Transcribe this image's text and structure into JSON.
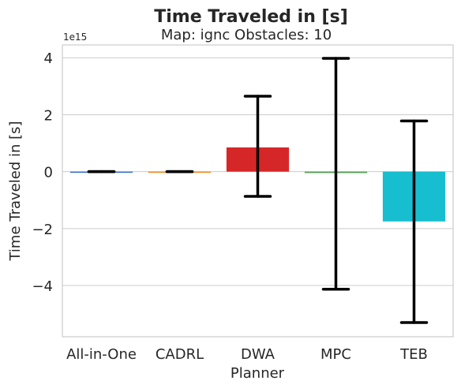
{
  "chart_data": {
    "type": "bar",
    "title": "Time Traveled in [s]",
    "subtitle": "Map: ignc Obstacles: 10",
    "xlabel": "Planner",
    "ylabel": "Time Traveled in [s]",
    "y_offset_label": "1e15",
    "y_scale": 1000000000000000.0,
    "ylim": [
      -5.8,
      4.45
    ],
    "yticks": [
      -4,
      -2,
      0,
      2,
      4
    ],
    "ytick_labels": [
      "−4",
      "−2",
      "0",
      "2",
      "4"
    ],
    "grid": true,
    "categories": [
      "All-in-One",
      "CADRL",
      "DWA",
      "MPC",
      "TEB"
    ],
    "values": [
      0,
      0,
      0.85,
      -0.05,
      -1.75
    ],
    "error_low": [
      0,
      0,
      -0.87,
      -4.13,
      -5.3
    ],
    "error_high": [
      0,
      0,
      2.65,
      3.98,
      1.78
    ],
    "colors": [
      "#3b6fd1",
      "#f08a24",
      "#d62728",
      "#5aa05a",
      "#17becf"
    ]
  }
}
